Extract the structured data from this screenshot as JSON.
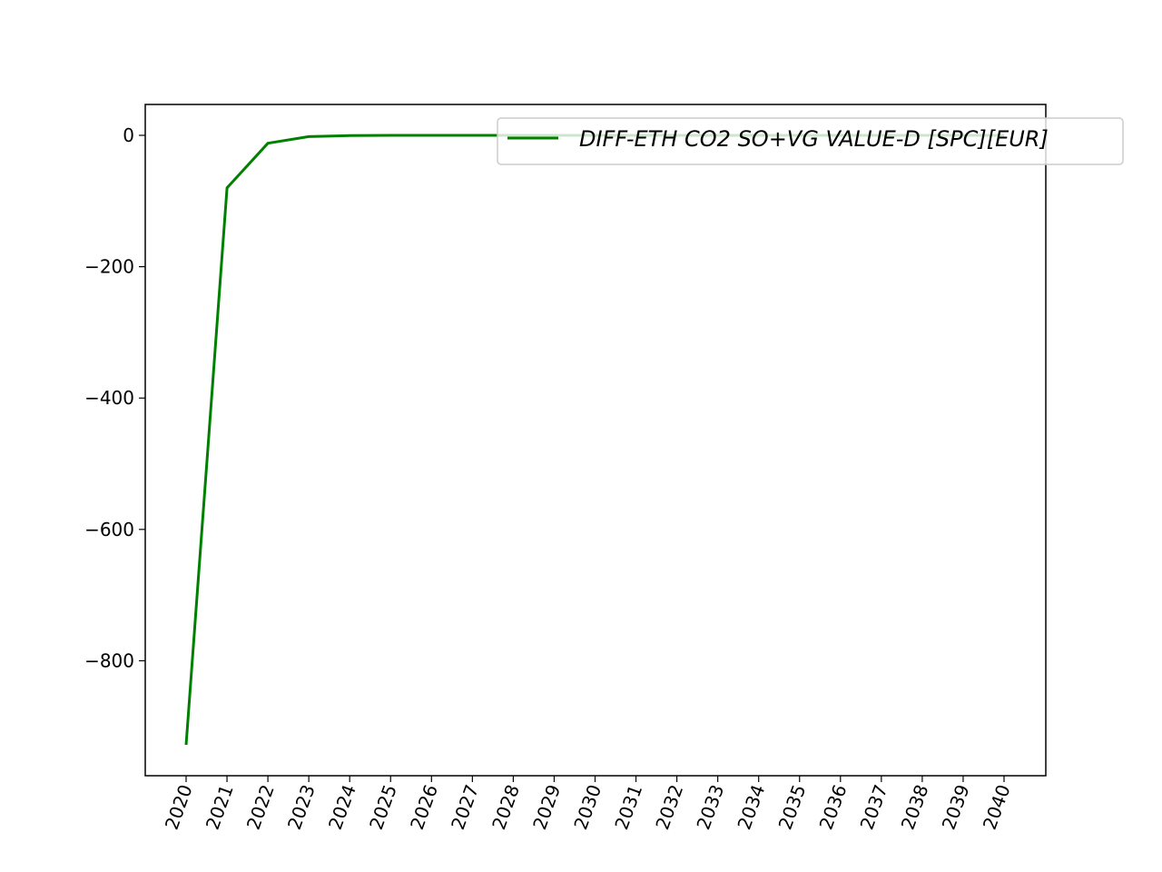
{
  "chart_data": {
    "type": "line",
    "title": "",
    "xlabel": "",
    "ylabel": "",
    "x": [
      "2020",
      "2021",
      "2022",
      "2023",
      "2024",
      "2025",
      "2026",
      "2027",
      "2028",
      "2029",
      "2030",
      "2031",
      "2032",
      "2033",
      "2034",
      "2035",
      "2036",
      "2037",
      "2038",
      "2039",
      "2040"
    ],
    "series": [
      {
        "name": "DIFF-ETH CO2 SO+VG VALUE-D [SPC][EUR]",
        "color": "#008000",
        "values": [
          -928,
          -80,
          -12,
          -2,
          -0.5,
          0,
          0,
          0,
          0,
          0,
          0,
          0,
          0,
          0,
          0,
          0,
          0,
          0,
          0,
          0,
          0
        ]
      }
    ],
    "ylim": [
      -975,
      47
    ],
    "yticks": [
      0,
      -200,
      -400,
      -600,
      -800
    ],
    "ytick_labels": [
      "0",
      "−200",
      "−400",
      "−600",
      "−800"
    ],
    "xtick_rotation": -70,
    "grid": false,
    "legend_position": "upper-right"
  }
}
